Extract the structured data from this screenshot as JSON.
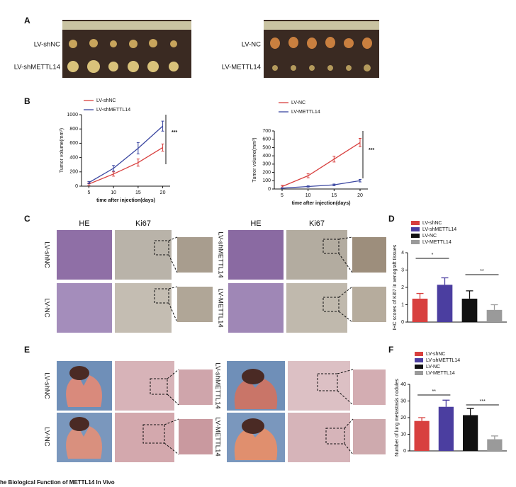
{
  "panels": {
    "a": {
      "letter": "A",
      "left_rows": [
        "LV-shNC",
        "LV-shMETTL14"
      ],
      "right_rows": [
        "LV-NC",
        "LV-METTL14"
      ]
    },
    "b": {
      "letter": "B"
    },
    "c": {
      "letter": "C",
      "left_cols": [
        "HE",
        "Ki67"
      ],
      "left_rows": [
        "LV-shNC",
        "LV-NC"
      ],
      "right_cols": [
        "HE",
        "Ki67"
      ],
      "right_rows": [
        "LV-shMETTL14",
        "LV-METTL14"
      ]
    },
    "d": {
      "letter": "D"
    },
    "e": {
      "letter": "E",
      "left_rows": [
        "LV-shNC",
        "LV-NC"
      ],
      "right_rows": [
        "LV-shMETTL14",
        "LV-METTL14"
      ]
    },
    "f": {
      "letter": "F"
    },
    "caption": "he Biological Function of METTL14 In Vivo"
  },
  "chart_data": [
    {
      "type": "line",
      "x": [
        5,
        10,
        15,
        20
      ],
      "xlim": [
        3.5,
        21.5
      ],
      "xticks": [
        5,
        10,
        15,
        20
      ],
      "ylim": [
        0,
        1000
      ],
      "yticks": [
        0,
        200,
        400,
        600,
        800,
        1000
      ],
      "ylabel": "Tumor volume(mm³)",
      "xlabel": "time after injection(days)",
      "series": [
        {
          "name": "LV-shNC",
          "color": "#d8403f",
          "values": [
            30,
            170,
            330,
            540
          ],
          "errors": [
            15,
            30,
            50,
            50
          ]
        },
        {
          "name": "LV-shMETTL14",
          "color": "#3a46a0",
          "values": [
            50,
            250,
            530,
            840
          ],
          "errors": [
            15,
            40,
            80,
            70
          ]
        }
      ],
      "annotations": [
        "***"
      ]
    },
    {
      "type": "line",
      "x": [
        5,
        10,
        15,
        20
      ],
      "xlim": [
        3.5,
        21.5
      ],
      "xticks": [
        5,
        10,
        15,
        20
      ],
      "ylim": [
        0,
        700
      ],
      "yticks": [
        0,
        100,
        200,
        300,
        400,
        500,
        600,
        700
      ],
      "ylabel": "Tumor volume(mm³)",
      "xlabel": "time after injection(days)",
      "series": [
        {
          "name": "LV-NC",
          "color": "#d8403f",
          "values": [
            30,
            160,
            360,
            560
          ],
          "errors": [
            15,
            25,
            35,
            50
          ]
        },
        {
          "name": "LV-METTL14",
          "color": "#3a46a0",
          "values": [
            10,
            30,
            50,
            100
          ],
          "errors": [
            5,
            8,
            10,
            15
          ]
        }
      ],
      "annotations": [
        "***"
      ]
    },
    {
      "type": "bar",
      "categories": [
        "LV-shNC",
        "LV-shMETTL14",
        "LV-NC",
        "LV-METTL14"
      ],
      "values": [
        1.35,
        2.15,
        1.35,
        0.7
      ],
      "errors": [
        0.3,
        0.4,
        0.45,
        0.3
      ],
      "colors": [
        "#d8403f",
        "#4b3ea0",
        "#111111",
        "#9a9a9a"
      ],
      "ylim": [
        0,
        4
      ],
      "yticks": [
        0,
        1,
        2,
        3,
        4
      ],
      "ylabel": "IHC scores of Ki67 in xenograft tissues",
      "annotations": [
        "*",
        "**"
      ]
    },
    {
      "type": "bar",
      "categories": [
        "LV-shNC",
        "LV-shMETTL14",
        "LV-NC",
        "LV-METTL14"
      ],
      "values": [
        18,
        26.5,
        21.5,
        7
      ],
      "errors": [
        2,
        4,
        4,
        2
      ],
      "colors": [
        "#d8403f",
        "#4b3ea0",
        "#111111",
        "#9a9a9a"
      ],
      "ylim": [
        0,
        40
      ],
      "yticks": [
        0,
        10,
        20,
        30,
        40
      ],
      "ylabel": "Number of lung metastasis nodules",
      "annotations": [
        "**",
        "***"
      ]
    }
  ]
}
